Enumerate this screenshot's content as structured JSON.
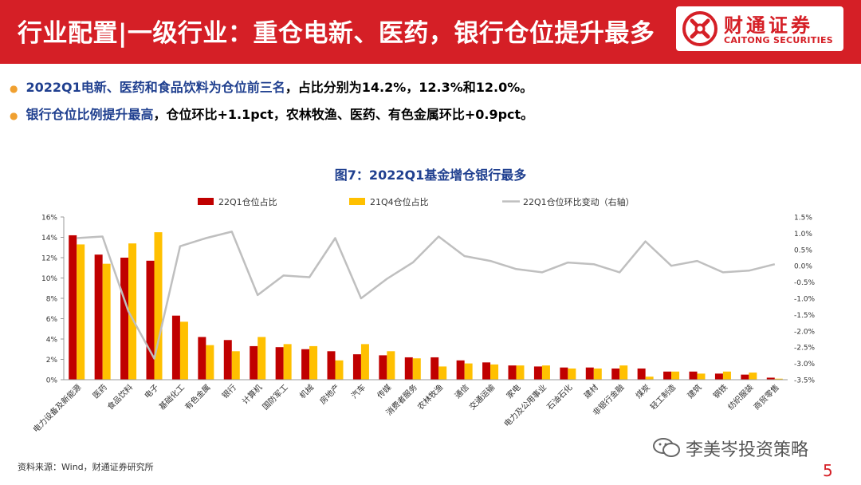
{
  "header": {
    "title": "行业配置|一级行业：重仓电新、医药，银行仓位提升最多",
    "logo_cn": "财通证券",
    "logo_en": "CAITONG SECURITIES",
    "brand_color": "#d51f26"
  },
  "bullets": [
    {
      "highlight": "2022Q1电新、医药和食品饮料为仓位前三名",
      "rest": "，占比分别为14.2%，12.3%和12.0%。"
    },
    {
      "highlight": "银行仓位比例提升最高",
      "rest": "，仓位环比+1.1pct，农林牧渔、医药、有色金属环比+0.9pct。"
    }
  ],
  "chart_data": {
    "type": "bar",
    "title": "图7：2022Q1基金增仓银行最多",
    "categories": [
      "电力设备及新能源",
      "医药",
      "食品饮料",
      "电子",
      "基础化工",
      "有色金属",
      "银行",
      "计算机",
      "国防军工",
      "机械",
      "房地产",
      "汽车",
      "传媒",
      "消费者服务",
      "农林牧渔",
      "通信",
      "交通运输",
      "家电",
      "电力及公用事业",
      "石油石化",
      "建材",
      "非银行金融",
      "煤炭",
      "轻工制造",
      "建筑",
      "钢铁",
      "纺织服装",
      "商贸零售"
    ],
    "series": [
      {
        "name": "22Q1仓位占比",
        "type": "bar",
        "axis": "left",
        "color": "#c00000",
        "values": [
          14.2,
          12.3,
          12.0,
          11.7,
          6.3,
          4.2,
          3.9,
          3.3,
          3.2,
          3.0,
          2.8,
          2.5,
          2.4,
          2.2,
          2.2,
          1.9,
          1.7,
          1.4,
          1.3,
          1.2,
          1.2,
          1.1,
          1.1,
          0.8,
          0.8,
          0.6,
          0.5,
          0.2
        ]
      },
      {
        "name": "21Q4仓位占比",
        "type": "bar",
        "axis": "left",
        "color": "#ffc000",
        "values": [
          13.3,
          11.4,
          13.4,
          14.5,
          5.7,
          3.4,
          2.8,
          4.2,
          3.5,
          3.3,
          1.9,
          3.5,
          2.8,
          2.1,
          1.3,
          1.6,
          1.5,
          1.4,
          1.4,
          1.1,
          1.1,
          1.4,
          0.3,
          0.8,
          0.6,
          0.8,
          0.7,
          0.1
        ]
      },
      {
        "name": "22Q1仓位环比变动（右轴）",
        "type": "line",
        "axis": "right",
        "color": "#bfbfbf",
        "values": [
          0.85,
          0.9,
          -1.4,
          -2.85,
          0.6,
          0.85,
          1.05,
          -0.9,
          -0.3,
          -0.35,
          0.85,
          -1.0,
          -0.4,
          0.1,
          0.9,
          0.3,
          0.15,
          -0.1,
          -0.2,
          0.1,
          0.05,
          -0.2,
          0.75,
          0.0,
          0.15,
          -0.2,
          -0.15,
          0.05
        ]
      }
    ],
    "ylim_left": [
      0,
      16
    ],
    "yticks_left": [
      "0%",
      "2%",
      "4%",
      "6%",
      "8%",
      "10%",
      "12%",
      "14%",
      "16%"
    ],
    "ylim_right": [
      -3.5,
      1.5
    ],
    "yticks_right": [
      "-3.5%",
      "-3.0%",
      "-2.5%",
      "-2.0%",
      "-1.5%",
      "-1.0%",
      "-0.5%",
      "0.0%",
      "0.5%",
      "1.0%",
      "1.5%"
    ],
    "grid": false,
    "legend_position": "top"
  },
  "footer": {
    "source": "资料来源：Wind，财通证券研究所",
    "watermark": "李美岑投资策略",
    "page_number": "5"
  }
}
